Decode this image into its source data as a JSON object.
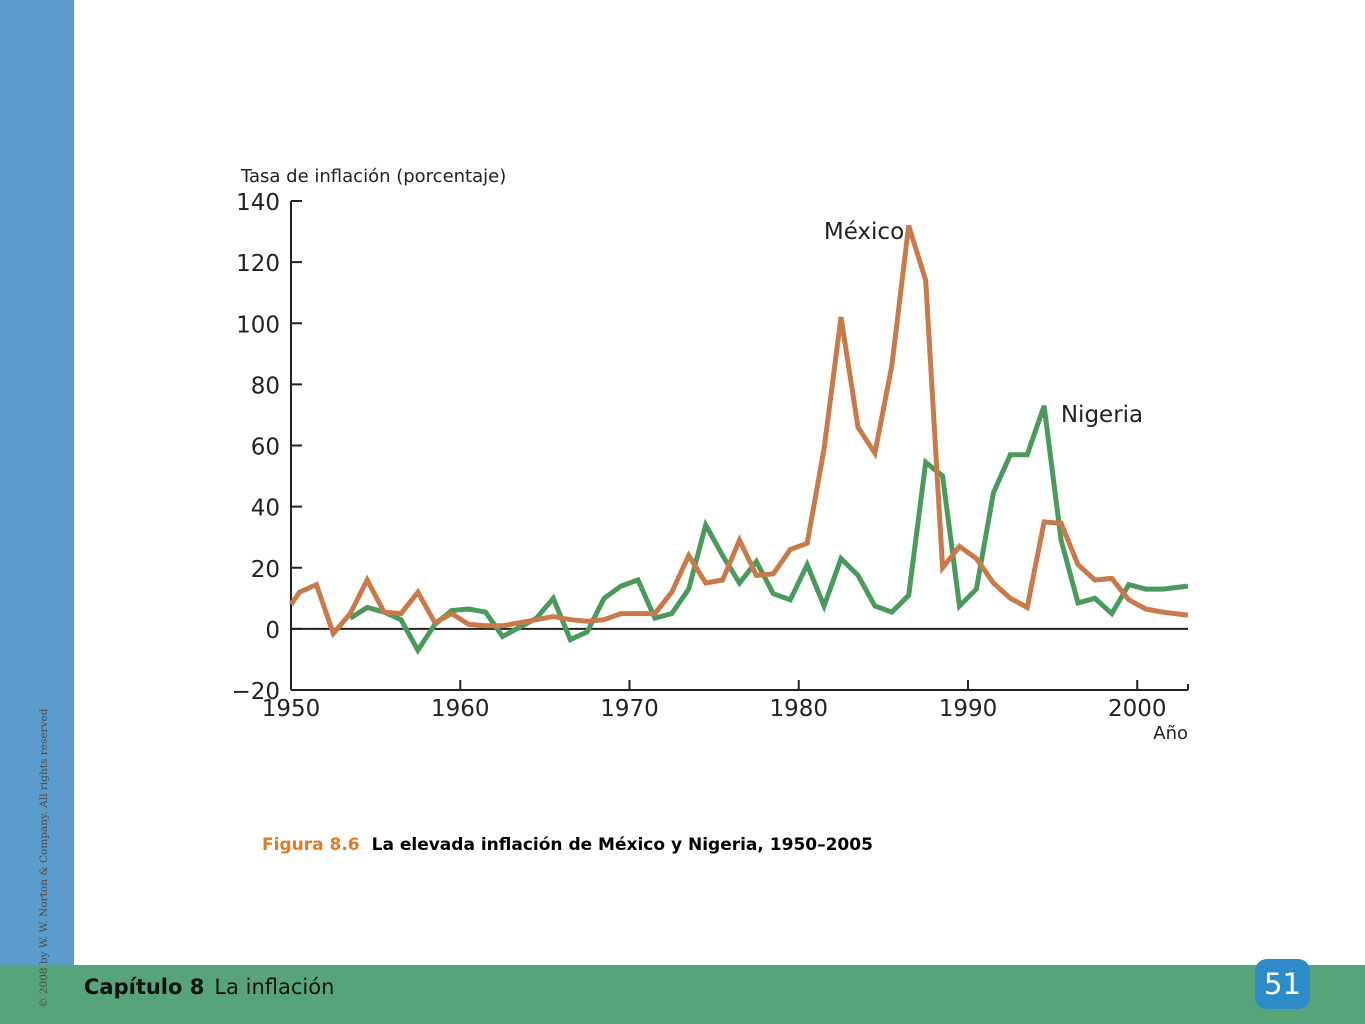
{
  "colors": {
    "sidebar": "#5b9ccd",
    "footer": "#57a47a",
    "page_badge": "#2d8cc7",
    "figure_label": "#e17a23",
    "mexico": "#c97a4a",
    "nigeria": "#4a9a5c"
  },
  "sidebar": {
    "copyright": "© 2008 by W. W. Norton & Company. All rights reserved"
  },
  "footer": {
    "chapter_label": "Capítulo 8",
    "chapter_title": "La inflación",
    "page_number": "51"
  },
  "caption": {
    "figure_label": "Figura 8.6",
    "title": "La elevada inflación de México y Nigeria, 1950–2005"
  },
  "chart_data": {
    "type": "line",
    "ylabel": "Tasa de inflación (porcentaje)",
    "xlabel": "Año",
    "xlim": [
      1950,
      2003
    ],
    "ylim": [
      -20,
      140
    ],
    "x_ticks": [
      1950,
      1960,
      1970,
      1980,
      1990,
      2000
    ],
    "y_ticks": [
      -20,
      0,
      20,
      40,
      60,
      80,
      100,
      120,
      140
    ],
    "grid": false,
    "zero_line": true,
    "series": [
      {
        "name": "México",
        "color": "#c97a4a",
        "points": [
          [
            1950,
            8
          ],
          [
            1950.5,
            12
          ],
          [
            1951.5,
            14.5
          ],
          [
            1952.5,
            -1.5
          ],
          [
            1953.5,
            5
          ],
          [
            1954.5,
            16
          ],
          [
            1955.5,
            5.5
          ],
          [
            1956.5,
            5
          ],
          [
            1957.5,
            12
          ],
          [
            1958.5,
            2
          ],
          [
            1959.5,
            5
          ],
          [
            1960.5,
            1.5
          ],
          [
            1961.5,
            1
          ],
          [
            1962.5,
            1
          ],
          [
            1963.5,
            2
          ],
          [
            1964.5,
            3
          ],
          [
            1965.5,
            4
          ],
          [
            1966.5,
            3
          ],
          [
            1967.5,
            2.5
          ],
          [
            1968.5,
            3
          ],
          [
            1969.5,
            5
          ],
          [
            1970.5,
            5
          ],
          [
            1971.5,
            5
          ],
          [
            1972.5,
            12
          ],
          [
            1973.5,
            24
          ],
          [
            1974.5,
            15
          ],
          [
            1975.5,
            16
          ],
          [
            1976.5,
            29
          ],
          [
            1977.5,
            17.5
          ],
          [
            1978.5,
            18
          ],
          [
            1979.5,
            26
          ],
          [
            1980.5,
            28
          ],
          [
            1981.5,
            59
          ],
          [
            1982.5,
            102
          ],
          [
            1983.5,
            66
          ],
          [
            1984.5,
            57.5
          ],
          [
            1985.5,
            86
          ],
          [
            1986.5,
            132
          ],
          [
            1987.5,
            114
          ],
          [
            1988.5,
            20
          ],
          [
            1989.5,
            27
          ],
          [
            1990.5,
            23
          ],
          [
            1991.5,
            15
          ],
          [
            1992.5,
            10
          ],
          [
            1993.5,
            7
          ],
          [
            1994.5,
            35
          ],
          [
            1995.5,
            34.5
          ],
          [
            1996.5,
            21
          ],
          [
            1997.5,
            16
          ],
          [
            1998.5,
            16.5
          ],
          [
            1999.5,
            9.5
          ],
          [
            2000.5,
            6.5
          ],
          [
            2001.5,
            5.5
          ],
          [
            2003,
            4.5
          ]
        ]
      },
      {
        "name": "Nigeria",
        "color": "#4a9a5c",
        "points": [
          [
            1953.5,
            3.5
          ],
          [
            1954.5,
            7
          ],
          [
            1955.5,
            5.5
          ],
          [
            1956.5,
            3
          ],
          [
            1957.5,
            -7
          ],
          [
            1958.5,
            1.5
          ],
          [
            1959.5,
            6
          ],
          [
            1960.5,
            6.5
          ],
          [
            1961.5,
            5.5
          ],
          [
            1962.5,
            -2.5
          ],
          [
            1963.5,
            0.5
          ],
          [
            1964.5,
            3.5
          ],
          [
            1965.5,
            10
          ],
          [
            1966.5,
            -3.5
          ],
          [
            1967.5,
            -1
          ],
          [
            1968.5,
            10
          ],
          [
            1969.5,
            14
          ],
          [
            1970.5,
            16
          ],
          [
            1971.5,
            3.5
          ],
          [
            1972.5,
            5
          ],
          [
            1973.5,
            13
          ],
          [
            1974.5,
            34
          ],
          [
            1975.5,
            24
          ],
          [
            1976.5,
            15
          ],
          [
            1977.5,
            22
          ],
          [
            1978.5,
            11.5
          ],
          [
            1979.5,
            9.5
          ],
          [
            1980.5,
            21
          ],
          [
            1981.5,
            7.5
          ],
          [
            1982.5,
            23
          ],
          [
            1983.5,
            17.5
          ],
          [
            1984.5,
            7.5
          ],
          [
            1985.5,
            5.5
          ],
          [
            1986.5,
            11
          ],
          [
            1987.5,
            54.5
          ],
          [
            1988.5,
            50
          ],
          [
            1989.5,
            7.5
          ],
          [
            1990.5,
            13
          ],
          [
            1991.5,
            44.5
          ],
          [
            1992.5,
            57
          ],
          [
            1993.5,
            57
          ],
          [
            1994.5,
            73
          ],
          [
            1995.5,
            29
          ],
          [
            1996.5,
            8.5
          ],
          [
            1997.5,
            10
          ],
          [
            1998.5,
            5
          ],
          [
            1999.5,
            14.5
          ],
          [
            2000.5,
            13
          ],
          [
            2001.5,
            13
          ],
          [
            2003,
            14
          ]
        ]
      }
    ],
    "annotations": [
      {
        "text": "México",
        "series": "México"
      },
      {
        "text": "Nigeria",
        "series": "Nigeria"
      }
    ]
  }
}
